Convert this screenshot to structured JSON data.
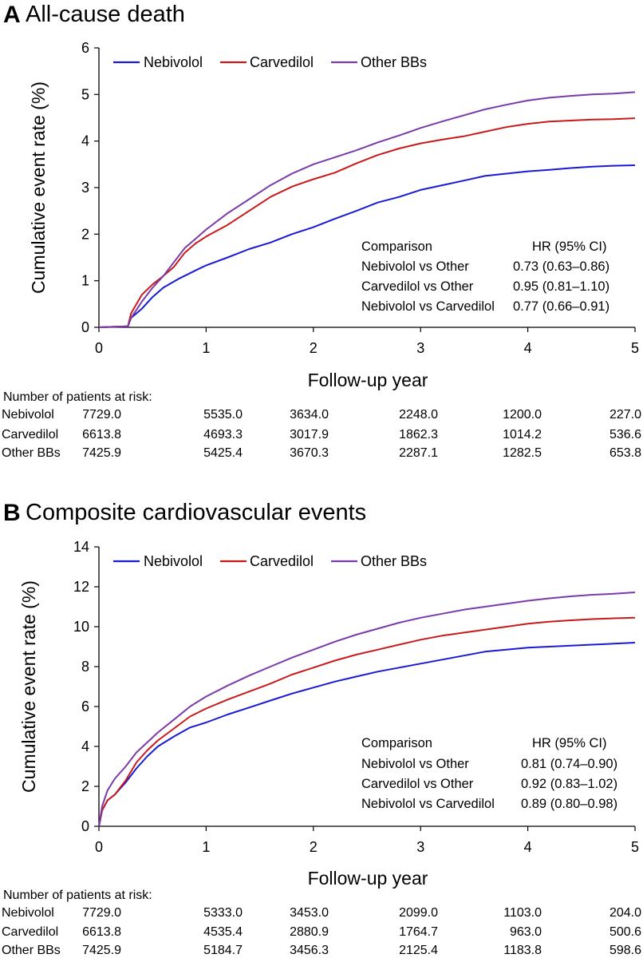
{
  "chart_data": [
    {
      "type": "line",
      "panel_letter": "A",
      "title": "All-cause death",
      "xlabel": "Follow-up year",
      "ylabel": "Cumulative event rate (%)",
      "xlim": [
        0,
        5
      ],
      "ylim": [
        0,
        6
      ],
      "x_ticks": [
        "0",
        "1",
        "2",
        "3",
        "4",
        "5"
      ],
      "y_ticks": [
        "0",
        "1",
        "2",
        "3",
        "4",
        "5",
        "6"
      ],
      "legend": "top-left",
      "grid": false,
      "series": [
        {
          "name": "Nebivolol",
          "color": "#1a1ad6",
          "points": [
            [
              0,
              0
            ],
            [
              0.27,
              0.02
            ],
            [
              0.3,
              0.2
            ],
            [
              0.4,
              0.4
            ],
            [
              0.5,
              0.65
            ],
            [
              0.6,
              0.85
            ],
            [
              0.75,
              1.05
            ],
            [
              0.9,
              1.22
            ],
            [
              1,
              1.33
            ],
            [
              1.2,
              1.5
            ],
            [
              1.4,
              1.68
            ],
            [
              1.6,
              1.82
            ],
            [
              1.8,
              2.0
            ],
            [
              2,
              2.15
            ],
            [
              2.2,
              2.33
            ],
            [
              2.4,
              2.5
            ],
            [
              2.6,
              2.68
            ],
            [
              2.8,
              2.8
            ],
            [
              3,
              2.95
            ],
            [
              3.2,
              3.05
            ],
            [
              3.4,
              3.15
            ],
            [
              3.6,
              3.25
            ],
            [
              3.8,
              3.3
            ],
            [
              4,
              3.35
            ],
            [
              4.2,
              3.38
            ],
            [
              4.4,
              3.42
            ],
            [
              4.6,
              3.45
            ],
            [
              4.8,
              3.47
            ],
            [
              5,
              3.48
            ]
          ]
        },
        {
          "name": "Carvedilol",
          "color": "#c81a1a",
          "points": [
            [
              0,
              0
            ],
            [
              0.27,
              0.02
            ],
            [
              0.3,
              0.3
            ],
            [
              0.4,
              0.7
            ],
            [
              0.5,
              0.92
            ],
            [
              0.6,
              1.1
            ],
            [
              0.7,
              1.3
            ],
            [
              0.8,
              1.6
            ],
            [
              0.9,
              1.8
            ],
            [
              1,
              1.95
            ],
            [
              1.2,
              2.2
            ],
            [
              1.4,
              2.5
            ],
            [
              1.6,
              2.8
            ],
            [
              1.8,
              3.02
            ],
            [
              2,
              3.18
            ],
            [
              2.2,
              3.32
            ],
            [
              2.4,
              3.52
            ],
            [
              2.6,
              3.7
            ],
            [
              2.8,
              3.84
            ],
            [
              3,
              3.95
            ],
            [
              3.2,
              4.03
            ],
            [
              3.4,
              4.1
            ],
            [
              3.6,
              4.2
            ],
            [
              3.8,
              4.3
            ],
            [
              4,
              4.37
            ],
            [
              4.2,
              4.42
            ],
            [
              4.4,
              4.44
            ],
            [
              4.6,
              4.46
            ],
            [
              4.8,
              4.47
            ],
            [
              5,
              4.49
            ]
          ]
        },
        {
          "name": "Other BBs",
          "color": "#7a3aaa",
          "points": [
            [
              0,
              0
            ],
            [
              0.27,
              0.02
            ],
            [
              0.3,
              0.2
            ],
            [
              0.4,
              0.55
            ],
            [
              0.5,
              0.85
            ],
            [
              0.6,
              1.1
            ],
            [
              0.7,
              1.4
            ],
            [
              0.8,
              1.7
            ],
            [
              0.9,
              1.9
            ],
            [
              1,
              2.1
            ],
            [
              1.2,
              2.45
            ],
            [
              1.4,
              2.75
            ],
            [
              1.6,
              3.05
            ],
            [
              1.8,
              3.3
            ],
            [
              2,
              3.5
            ],
            [
              2.2,
              3.65
            ],
            [
              2.4,
              3.8
            ],
            [
              2.6,
              3.97
            ],
            [
              2.8,
              4.12
            ],
            [
              3,
              4.28
            ],
            [
              3.2,
              4.42
            ],
            [
              3.4,
              4.55
            ],
            [
              3.6,
              4.68
            ],
            [
              3.8,
              4.78
            ],
            [
              4,
              4.87
            ],
            [
              4.2,
              4.93
            ],
            [
              4.4,
              4.97
            ],
            [
              4.6,
              5.0
            ],
            [
              4.8,
              5.02
            ],
            [
              5,
              5.05
            ]
          ]
        }
      ],
      "hr_table": {
        "header": [
          "Comparison",
          "HR (95% CI)"
        ],
        "rows": [
          [
            "Nebivolol vs Other",
            "0.73 (0.63–0.86)"
          ],
          [
            "Carvedilol vs Other",
            "0.95 (0.81–1.10)"
          ],
          [
            "Nebivolol vs Carvedilol",
            "0.77 (0.66–0.91)"
          ]
        ]
      },
      "risk_table": {
        "title": "Number of patients at risk:",
        "rows": [
          {
            "label": "Nebivolol",
            "values": [
              "7729.0",
              "5535.0",
              "3634.0",
              "2248.0",
              "1200.0",
              "227.0"
            ]
          },
          {
            "label": "Carvedilol",
            "values": [
              "6613.8",
              "4693.3",
              "3017.9",
              "1862.3",
              "1014.2",
              "536.6"
            ]
          },
          {
            "label": "Other BBs",
            "values": [
              "7425.9",
              "5425.4",
              "3670.3",
              "2287.1",
              "1282.5",
              "653.8"
            ]
          }
        ]
      }
    },
    {
      "type": "line",
      "panel_letter": "B",
      "title": "Composite cardiovascular events",
      "xlabel": "Follow-up year",
      "ylabel": "Cumulative event rate (%)",
      "xlim": [
        0,
        5
      ],
      "ylim": [
        0,
        14
      ],
      "x_ticks": [
        "0",
        "1",
        "2",
        "3",
        "4",
        "5"
      ],
      "y_ticks": [
        "0",
        "2",
        "4",
        "6",
        "8",
        "10",
        "12",
        "14"
      ],
      "legend": "top-left",
      "grid": false,
      "series": [
        {
          "name": "Nebivolol",
          "color": "#1a1ad6",
          "points": [
            [
              0,
              0
            ],
            [
              0.03,
              0.8
            ],
            [
              0.08,
              1.3
            ],
            [
              0.15,
              1.6
            ],
            [
              0.25,
              2.2
            ],
            [
              0.35,
              2.9
            ],
            [
              0.45,
              3.5
            ],
            [
              0.55,
              4.0
            ],
            [
              0.7,
              4.5
            ],
            [
              0.85,
              4.95
            ],
            [
              1,
              5.2
            ],
            [
              1.2,
              5.6
            ],
            [
              1.4,
              5.95
            ],
            [
              1.6,
              6.3
            ],
            [
              1.8,
              6.65
            ],
            [
              2,
              6.95
            ],
            [
              2.2,
              7.25
            ],
            [
              2.4,
              7.5
            ],
            [
              2.6,
              7.75
            ],
            [
              2.8,
              7.95
            ],
            [
              3,
              8.15
            ],
            [
              3.2,
              8.35
            ],
            [
              3.4,
              8.55
            ],
            [
              3.6,
              8.75
            ],
            [
              3.8,
              8.85
            ],
            [
              4,
              8.95
            ],
            [
              4.2,
              9.0
            ],
            [
              4.4,
              9.05
            ],
            [
              4.6,
              9.1
            ],
            [
              4.8,
              9.15
            ],
            [
              5,
              9.2
            ]
          ]
        },
        {
          "name": "Carvedilol",
          "color": "#c81a1a",
          "points": [
            [
              0,
              0
            ],
            [
              0.03,
              0.8
            ],
            [
              0.08,
              1.3
            ],
            [
              0.15,
              1.6
            ],
            [
              0.25,
              2.3
            ],
            [
              0.35,
              3.2
            ],
            [
              0.45,
              3.8
            ],
            [
              0.55,
              4.3
            ],
            [
              0.7,
              4.9
            ],
            [
              0.85,
              5.5
            ],
            [
              1,
              5.9
            ],
            [
              1.2,
              6.35
            ],
            [
              1.4,
              6.75
            ],
            [
              1.6,
              7.15
            ],
            [
              1.8,
              7.6
            ],
            [
              2,
              7.95
            ],
            [
              2.2,
              8.3
            ],
            [
              2.4,
              8.6
            ],
            [
              2.6,
              8.85
            ],
            [
              2.8,
              9.1
            ],
            [
              3,
              9.35
            ],
            [
              3.2,
              9.55
            ],
            [
              3.4,
              9.7
            ],
            [
              3.6,
              9.85
            ],
            [
              3.8,
              10.0
            ],
            [
              4,
              10.15
            ],
            [
              4.2,
              10.25
            ],
            [
              4.4,
              10.32
            ],
            [
              4.6,
              10.38
            ],
            [
              4.8,
              10.42
            ],
            [
              5,
              10.45
            ]
          ]
        },
        {
          "name": "Other BBs",
          "color": "#7a3aaa",
          "points": [
            [
              0,
              0
            ],
            [
              0.03,
              1.0
            ],
            [
              0.08,
              1.8
            ],
            [
              0.15,
              2.4
            ],
            [
              0.25,
              3.0
            ],
            [
              0.35,
              3.7
            ],
            [
              0.45,
              4.2
            ],
            [
              0.55,
              4.7
            ],
            [
              0.7,
              5.35
            ],
            [
              0.85,
              6.0
            ],
            [
              1,
              6.5
            ],
            [
              1.2,
              7.05
            ],
            [
              1.4,
              7.55
            ],
            [
              1.6,
              8.0
            ],
            [
              1.8,
              8.45
            ],
            [
              2,
              8.85
            ],
            [
              2.2,
              9.25
            ],
            [
              2.4,
              9.6
            ],
            [
              2.6,
              9.9
            ],
            [
              2.8,
              10.2
            ],
            [
              3,
              10.45
            ],
            [
              3.2,
              10.65
            ],
            [
              3.4,
              10.85
            ],
            [
              3.6,
              11.0
            ],
            [
              3.8,
              11.15
            ],
            [
              4,
              11.3
            ],
            [
              4.2,
              11.42
            ],
            [
              4.4,
              11.52
            ],
            [
              4.6,
              11.6
            ],
            [
              4.8,
              11.65
            ],
            [
              5,
              11.72
            ]
          ]
        }
      ],
      "hr_table": {
        "header": [
          "Comparison",
          "HR (95% CI)"
        ],
        "rows": [
          [
            "Nebivolol vs Other",
            "0.81 (0.74–0.90)"
          ],
          [
            "Carvedilol vs Other",
            "0.92 (0.83–1.02)"
          ],
          [
            "Nebivolol vs Carvedilol",
            "0.89 (0.80–0.98)"
          ]
        ]
      },
      "risk_table": {
        "title": "Number of patients at risk:",
        "rows": [
          {
            "label": "Nebivolol",
            "values": [
              "7729.0",
              "5333.0",
              "3453.0",
              "2099.0",
              "1103.0",
              "204.0"
            ]
          },
          {
            "label": "Carvedilol",
            "values": [
              "6613.8",
              "4535.4",
              "2880.9",
              "1764.7",
              "963.0",
              "500.6"
            ]
          },
          {
            "label": "Other BBs",
            "values": [
              "7425.9",
              "5184.7",
              "3456.3",
              "2125.4",
              "1183.8",
              "598.6"
            ]
          }
        ]
      }
    }
  ]
}
